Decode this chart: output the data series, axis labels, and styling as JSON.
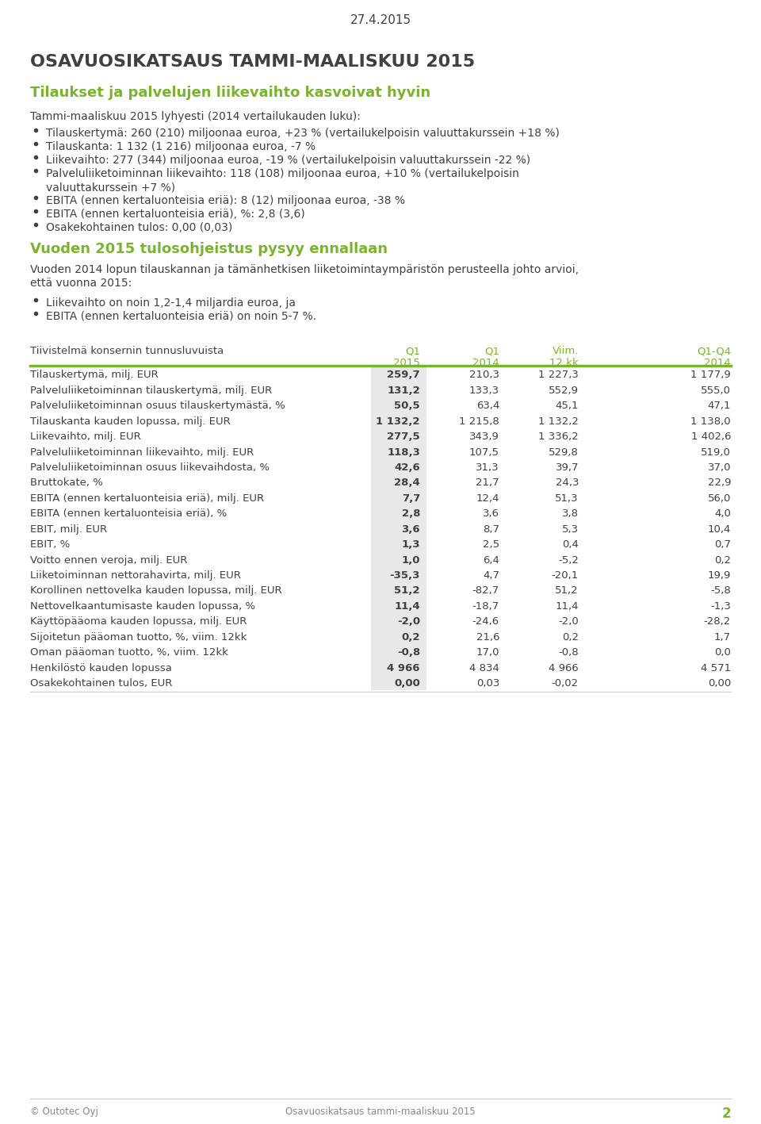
{
  "date": "27.4.2015",
  "main_title": "OSAVUOSIKATSAUS TAMMI-MAALISKUU 2015",
  "green_subtitle": "Tilaukset ja palvelujen liikevaihto kasvoivat hyvin",
  "section1_title": "Tammi-maaliskuu 2015 lyhyesti (2014 vertailukauden luku):",
  "bullets1": [
    "Tilauskertymä: 260 (210) miljoonaa euroa, +23 % (vertailukelpoisin valuuttakurssein +18 %)",
    "Tilauskanta: 1 132 (1 216) miljoonaa euroa, -7 %",
    "Liikevaihto: 277 (344) miljoonaa euroa, -19 % (vertailukelpoisin valuuttakurssein -22 %)",
    "Palveluliiketoiminnan liikevaihto: 118 (108) miljoonaa euroa, +10 % (vertailukelpoisin\nvaluuttakurssein +7 %)",
    "EBITA (ennen kertaluonteisia eriä): 8 (12) miljoonaa euroa, -38 %",
    "EBITA (ennen kertaluonteisia eriä), %: 2,8 (3,6)",
    "Osakekohtainen tulos: 0,00 (0,03)"
  ],
  "green_subtitle2": "Vuoden 2015 tulosohjeistus pysyy ennallaan",
  "para1": "Vuoden 2014 lopun tilauskannan ja tämänhetkisen liiketoimintaympäristön perusteella johto arvioi,\nettä vuonna 2015:",
  "bullets2": [
    "Liikevaihto on noin 1,2-1,4 miljardia euroa, ja",
    "EBITA (ennen kertaluonteisia eriä) on noin 5-7 %."
  ],
  "table_title": "Tiivistelmä konsernin tunnusluvuista",
  "col_header_row1": [
    "Q1",
    "Q1",
    "Viim.",
    "Q1-Q4"
  ],
  "col_header_row2": [
    "2015",
    "2014",
    "12 kk",
    "2014"
  ],
  "table_rows": [
    [
      "Tilauskertymä, milj. EUR",
      "259,7",
      "210,3",
      "1 227,3",
      "1 177,9"
    ],
    [
      "Palveluliiketoiminnan tilauskertymä, milj. EUR",
      "131,2",
      "133,3",
      "552,9",
      "555,0"
    ],
    [
      "Palveluliiketoiminnan osuus tilauskertymästä, %",
      "50,5",
      "63,4",
      "45,1",
      "47,1"
    ],
    [
      "Tilauskanta kauden lopussa, milj. EUR",
      "1 132,2",
      "1 215,8",
      "1 132,2",
      "1 138,0"
    ],
    [
      "Liikevaihto, milj. EUR",
      "277,5",
      "343,9",
      "1 336,2",
      "1 402,6"
    ],
    [
      "Palveluliiketoiminnan liikevaihto, milj. EUR",
      "118,3",
      "107,5",
      "529,8",
      "519,0"
    ],
    [
      "Palveluliiketoiminnan osuus liikevaihdosta, %",
      "42,6",
      "31,3",
      "39,7",
      "37,0"
    ],
    [
      "Bruttokate, %",
      "28,4",
      "21,7",
      "24,3",
      "22,9"
    ],
    [
      "EBITA (ennen kertaluonteisia eriä), milj. EUR",
      "7,7",
      "12,4",
      "51,3",
      "56,0"
    ],
    [
      "EBITA (ennen kertaluonteisia eriä), %",
      "2,8",
      "3,6",
      "3,8",
      "4,0"
    ],
    [
      "EBIT, milj. EUR",
      "3,6",
      "8,7",
      "5,3",
      "10,4"
    ],
    [
      "EBIT, %",
      "1,3",
      "2,5",
      "0,4",
      "0,7"
    ],
    [
      "Voitto ennen veroja, milj. EUR",
      "1,0",
      "6,4",
      "-5,2",
      "0,2"
    ],
    [
      "Liiketoiminnan nettorahavirta, milj. EUR",
      "-35,3",
      "4,7",
      "-20,1",
      "19,9"
    ],
    [
      "Korollinen nettovelka kauden lopussa, milj. EUR",
      "51,2",
      "-82,7",
      "51,2",
      "-5,8"
    ],
    [
      "Nettovelkaantumisaste kauden lopussa, %",
      "11,4",
      "-18,7",
      "11,4",
      "-1,3"
    ],
    [
      "Käyttöpääoma kauden lopussa, milj. EUR",
      "-2,0",
      "-24,6",
      "-2,0",
      "-28,2"
    ],
    [
      "Sijoitetun pääoman tuotto, %, viim. 12kk",
      "0,2",
      "21,6",
      "0,2",
      "1,7"
    ],
    [
      "Oman pääoman tuotto, %, viim. 12kk",
      "-0,8",
      "17,0",
      "-0,8",
      "0,0"
    ],
    [
      "Henkilöstö kauden lopussa",
      "4 966",
      "4 834",
      "4 966",
      "4 571"
    ],
    [
      "Osakekohtainen tulos, EUR",
      "0,00",
      "0,03",
      "-0,02",
      "0,00"
    ]
  ],
  "footer_left": "© Outotec Oyj",
  "footer_center": "Osavuosikatsaus tammi-maaliskuu 2015",
  "footer_page": "2",
  "green_color": "#7ab32e",
  "dark_gray": "#404040",
  "light_gray": "#e8e8e8",
  "table_header_color": "#7ab32e"
}
